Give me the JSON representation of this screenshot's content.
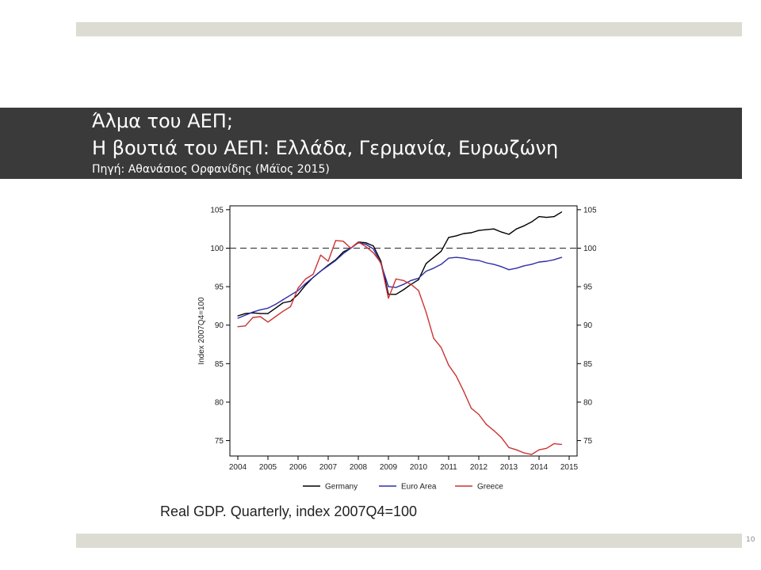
{
  "slide": {
    "title_line1": "Άλμα του ΑΕΠ;",
    "title_line2": "Η βουτιά του ΑΕΠ: Ελλάδα, Γερμανία, Ευρωζώνη",
    "source": "Πηγή: Αθανάσιος Ορφανίδης (Μάϊος 2015)",
    "caption": "Real GDP. Quarterly, index 2007Q4=100",
    "page_number": "10"
  },
  "chart_data": {
    "type": "line",
    "title": "",
    "xlabel": "",
    "ylabel": "Index 2007Q4=100",
    "xlim": [
      2004,
      2015
    ],
    "ylim": [
      73,
      105.5
    ],
    "x_ticks": [
      "2004",
      "2005",
      "2006",
      "2007",
      "2008",
      "2009",
      "2010",
      "2011",
      "2012",
      "2013",
      "2014",
      "2015"
    ],
    "y_ticks": [
      "75",
      "80",
      "85",
      "90",
      "95",
      "100",
      "105"
    ],
    "reference_line": 100,
    "grid": false,
    "legend_position": "bottom",
    "series": [
      {
        "name": "Germany",
        "color": "#000000",
        "x": [
          2004,
          2004.25,
          2004.5,
          2004.75,
          2005,
          2005.25,
          2005.5,
          2005.75,
          2006,
          2006.25,
          2006.5,
          2006.75,
          2007,
          2007.25,
          2007.5,
          2007.75,
          2008,
          2008.25,
          2008.5,
          2008.75,
          2009,
          2009.25,
          2009.5,
          2009.75,
          2010,
          2010.25,
          2010.5,
          2010.75,
          2011,
          2011.25,
          2011.5,
          2011.75,
          2012,
          2012.25,
          2012.5,
          2012.75,
          2013,
          2013.25,
          2013.5,
          2013.75,
          2014,
          2014.25,
          2014.5,
          2014.75
        ],
        "values": [
          91.2,
          91.5,
          91.6,
          91.5,
          91.5,
          92.2,
          92.9,
          93.1,
          94,
          95.2,
          96.2,
          97,
          97.8,
          98.5,
          99.5,
          100,
          100.8,
          100.7,
          100.3,
          98.3,
          94,
          94,
          94.6,
          95.3,
          95.9,
          98,
          98.8,
          99.6,
          101.4,
          101.6,
          101.9,
          102,
          102.3,
          102.4,
          102.5,
          102.1,
          101.8,
          102.5,
          102.9,
          103.4,
          104.1,
          104,
          104.1,
          104.7
        ]
      },
      {
        "name": "Euro Area",
        "color": "#2e2ea8",
        "x": [
          2004,
          2004.25,
          2004.5,
          2004.75,
          2005,
          2005.25,
          2005.5,
          2005.75,
          2006,
          2006.25,
          2006.5,
          2006.75,
          2007,
          2007.25,
          2007.5,
          2007.75,
          2008,
          2008.25,
          2008.5,
          2008.75,
          2009,
          2009.25,
          2009.5,
          2009.75,
          2010,
          2010.25,
          2010.5,
          2010.75,
          2011,
          2011.25,
          2011.5,
          2011.75,
          2012,
          2012.25,
          2012.5,
          2012.75,
          2013,
          2013.25,
          2013.5,
          2013.75,
          2014,
          2014.25,
          2014.5,
          2014.75
        ],
        "values": [
          90.9,
          91.3,
          91.7,
          92,
          92.2,
          92.7,
          93.3,
          93.9,
          94.5,
          95.4,
          96.2,
          97,
          97.7,
          98.4,
          99.3,
          100,
          100.7,
          100.5,
          99.9,
          98,
          95,
          94.9,
          95.3,
          95.8,
          96.1,
          97,
          97.4,
          97.9,
          98.7,
          98.8,
          98.7,
          98.5,
          98.4,
          98.1,
          97.9,
          97.6,
          97.2,
          97.4,
          97.7,
          97.9,
          98.2,
          98.3,
          98.5,
          98.8
        ]
      },
      {
        "name": "Greece",
        "color": "#cc3333",
        "x": [
          2004,
          2004.25,
          2004.5,
          2004.75,
          2005,
          2005.25,
          2005.5,
          2005.75,
          2006,
          2006.25,
          2006.5,
          2006.75,
          2007,
          2007.25,
          2007.5,
          2007.75,
          2008,
          2008.25,
          2008.5,
          2008.75,
          2009,
          2009.25,
          2009.5,
          2009.75,
          2010,
          2010.25,
          2010.5,
          2010.75,
          2011,
          2011.25,
          2011.5,
          2011.75,
          2012,
          2012.25,
          2012.5,
          2012.75,
          2013,
          2013.25,
          2013.5,
          2013.75,
          2014,
          2014.25,
          2014.5,
          2014.75
        ],
        "values": [
          89.8,
          89.9,
          91,
          91.1,
          90.4,
          91.1,
          91.8,
          92.4,
          94.8,
          96,
          96.6,
          99.1,
          98.3,
          101,
          100.9,
          100,
          100.8,
          100.2,
          99.4,
          98.1,
          93.5,
          96,
          95.8,
          95.3,
          94.5,
          91.7,
          88.3,
          87.1,
          84.8,
          83.4,
          81.4,
          79.2,
          78.4,
          77.1,
          76.3,
          75.4,
          74.1,
          73.8,
          73.4,
          73.2,
          73.8,
          74,
          74.6,
          74.5
        ]
      }
    ]
  }
}
